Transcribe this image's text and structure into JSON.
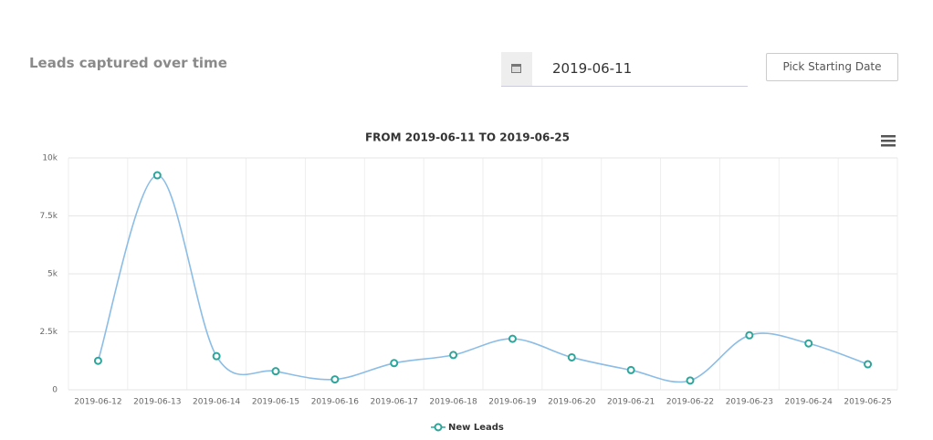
{
  "header": {
    "title": "Leads captured over time",
    "date_value": "2019-06-11",
    "button": "Pick Starting Date"
  },
  "chart_data": {
    "type": "line",
    "title": "FROM 2019-06-11 TO 2019-06-25",
    "categories": [
      "2019-06-12",
      "2019-06-13",
      "2019-06-14",
      "2019-06-15",
      "2019-06-16",
      "2019-06-17",
      "2019-06-18",
      "2019-06-19",
      "2019-06-20",
      "2019-06-21",
      "2019-06-22",
      "2019-06-23",
      "2019-06-24",
      "2019-06-25"
    ],
    "series": [
      {
        "name": "New Leads",
        "color": "#8bbde6",
        "marker_color": "#2ea59a",
        "values": [
          1250,
          9250,
          1450,
          800,
          450,
          1150,
          1500,
          2200,
          1400,
          850,
          400,
          2350,
          2000,
          1100
        ]
      }
    ],
    "ylim": [
      0,
      10000
    ],
    "yticks": [
      0,
      {
        "value": 2500,
        "label": "2.5k"
      },
      {
        "value": 5000,
        "label": "5k"
      },
      {
        "value": 7500,
        "label": "7.5k"
      },
      {
        "value": 10000,
        "label": "10k"
      }
    ],
    "grid": true,
    "legend": "bottom"
  }
}
